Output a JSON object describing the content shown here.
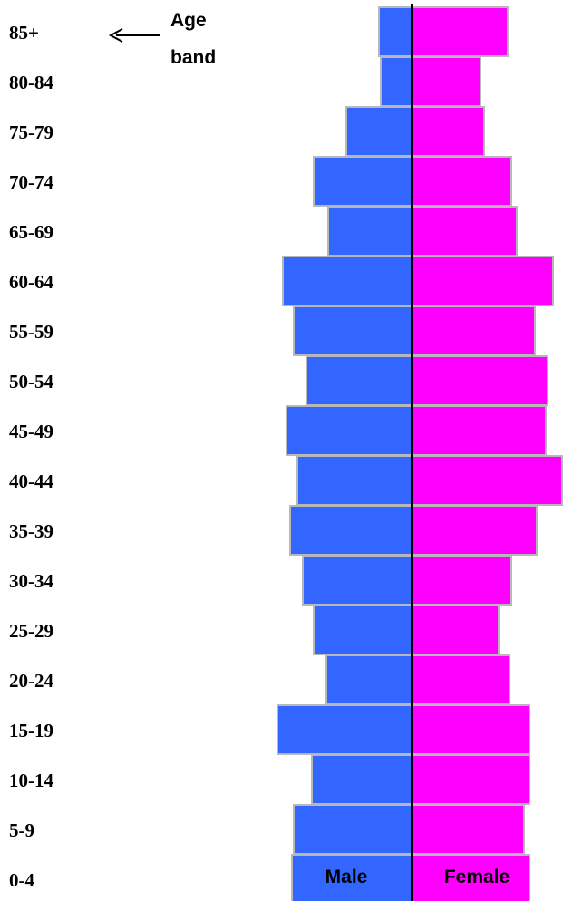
{
  "chart_data": {
    "type": "bar",
    "orientation": "horizontal",
    "categories": [
      "85+",
      "80-84",
      "75-79",
      "70-74",
      "65-69",
      "60-64",
      "55-59",
      "50-54",
      "45-49",
      "40-44",
      "35-39",
      "30-34",
      "25-29",
      "20-24",
      "15-19",
      "10-14",
      "5-9",
      "0-4"
    ],
    "series": [
      {
        "name": "Male",
        "color": "#3366ff",
        "values": [
          36,
          34,
          72,
          108,
          92,
          142,
          130,
          116,
          138,
          126,
          134,
          120,
          108,
          94,
          148,
          110,
          130,
          132
        ]
      },
      {
        "name": "Female",
        "color": "#ff00ff",
        "values": [
          106,
          76,
          80,
          110,
          116,
          156,
          136,
          150,
          148,
          166,
          138,
          110,
          96,
          108,
          130,
          130,
          124,
          130
        ]
      }
    ],
    "annotation": {
      "text_line1": "Age",
      "text_line2": "band",
      "arrow": "pointing-left"
    },
    "axis_divider_color": "#000000",
    "grid": false,
    "legend": "inside-bottom"
  }
}
